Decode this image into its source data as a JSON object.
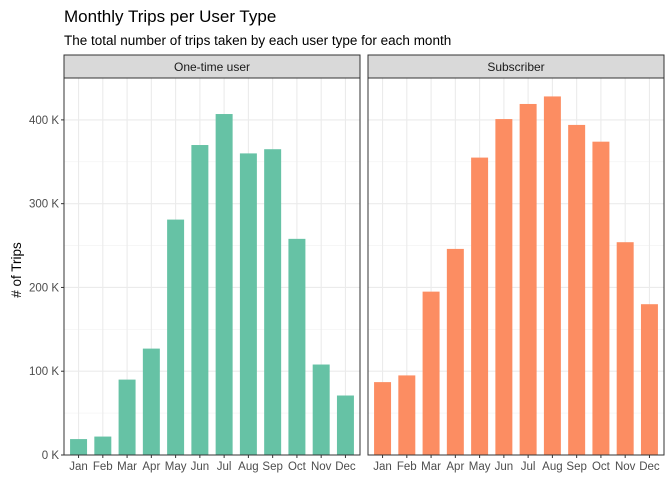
{
  "chart_data": {
    "type": "bar",
    "title": "Monthly Trips per User Type",
    "subtitle": "The total number of trips taken by each user type for each month",
    "xlabel": "",
    "ylabel": "# of Trips",
    "categories": [
      "Jan",
      "Feb",
      "Mar",
      "Apr",
      "May",
      "Jun",
      "Jul",
      "Aug",
      "Sep",
      "Oct",
      "Nov",
      "Dec"
    ],
    "ylim": [
      0,
      450000
    ],
    "y_ticks": [
      0,
      100000,
      200000,
      300000,
      400000
    ],
    "y_tick_labels": [
      "0 K",
      "100 K",
      "200 K",
      "300 K",
      "400 K"
    ],
    "grid": true,
    "facets": [
      "One-time user",
      "Subscriber"
    ],
    "series": [
      {
        "name": "One-time user",
        "color": "#66c2a5",
        "values": [
          19000,
          22000,
          90000,
          127000,
          281000,
          370000,
          407000,
          360000,
          365000,
          258000,
          108000,
          71000
        ]
      },
      {
        "name": "Subscriber",
        "color": "#fc8d62",
        "values": [
          87000,
          95000,
          195000,
          246000,
          355000,
          401000,
          419000,
          428000,
          394000,
          374000,
          254000,
          180000
        ]
      }
    ]
  }
}
